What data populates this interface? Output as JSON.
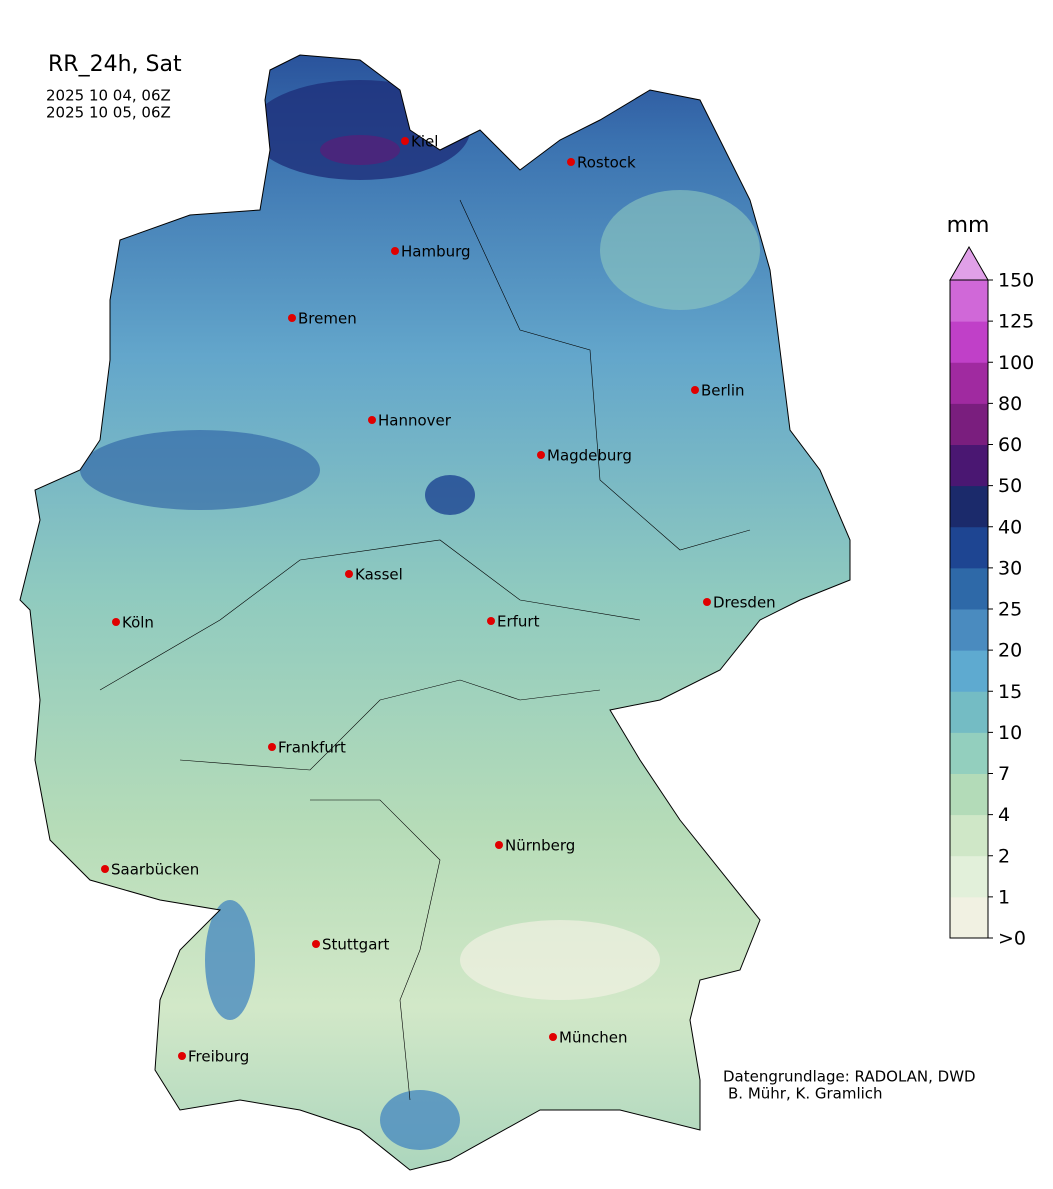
{
  "title": "RR_24h, Sat",
  "times": [
    "2025 10 04, 06Z",
    "2025 10 05, 06Z"
  ],
  "cities": [
    "Kiel",
    "Rostock",
    "Hamburg",
    "Bremen",
    "Berlin",
    "Hannover",
    "Magdeburg",
    "Kassel",
    "Dresden",
    "Köln",
    "Erfurt",
    "Frankfurt",
    "Nürnberg",
    "Saarbücken",
    "Stuttgart",
    "München",
    "Freiburg"
  ],
  "colorbar": {
    "unit": "mm",
    "ticks": [
      {
        "value": 0,
        "label": ">0"
      },
      1,
      2,
      4,
      7,
      10,
      15,
      20,
      25,
      30,
      40,
      50,
      60,
      80,
      100,
      125,
      150
    ],
    "colors": [
      "#f1f1e2",
      "#e2f0da",
      "#cfe7c7",
      "#b3dbb8",
      "#93cfbe",
      "#74bcc4",
      "#5eaad0",
      "#4a8bbf",
      "#2e69a8",
      "#1e4592",
      "#1b2a6b",
      "#4a1772",
      "#7a1e7e",
      "#a02aa0",
      "#c040c8",
      "#d068d8"
    ],
    "extend_color": "#e0a0e8"
  },
  "credits": [
    "Datengrundlage: RADOLAN, DWD",
    "B. Mühr, K. Gramlich"
  ]
}
